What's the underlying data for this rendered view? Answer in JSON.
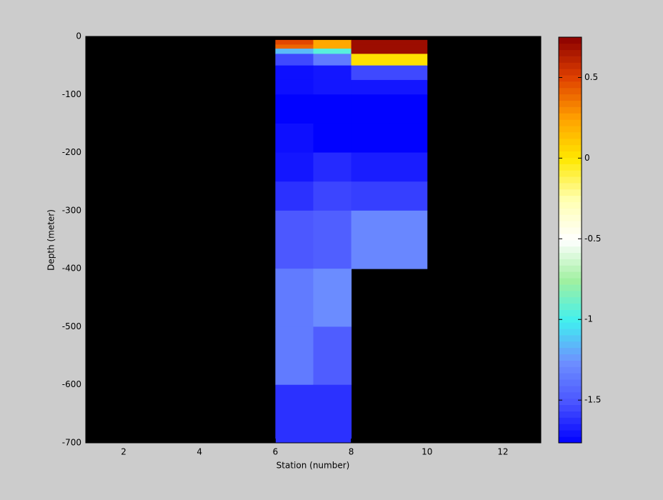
{
  "chart_data": {
    "type": "heatmap",
    "x_label": "Station (number)",
    "y_label": "Depth (meter)",
    "x_edges": [
      6,
      7,
      8,
      9,
      10
    ],
    "y_edges": [
      -6,
      -14,
      -21,
      -30,
      -50,
      -75,
      -100,
      -150,
      -200,
      -250,
      -300,
      -400,
      -500,
      -600,
      -700
    ],
    "values": [
      [
        0.48,
        0.22,
        0.7,
        0.7
      ],
      [
        0.4,
        0.22,
        0.7,
        0.7
      ],
      [
        -1.15,
        -0.95,
        0.7,
        0.7
      ],
      [
        -1.55,
        -1.35,
        0.02,
        0.02
      ],
      [
        -1.72,
        -1.7,
        -1.55,
        -1.55
      ],
      [
        -1.72,
        -1.7,
        -1.7,
        -1.7
      ],
      [
        -1.76,
        -1.76,
        -1.76,
        -1.76
      ],
      [
        -1.72,
        -1.76,
        -1.76,
        -1.76
      ],
      [
        -1.7,
        -1.64,
        -1.68,
        -1.68
      ],
      [
        -1.62,
        -1.56,
        -1.58,
        -1.58
      ],
      [
        -1.5,
        -1.47,
        -1.3,
        -1.3
      ],
      [
        -1.35,
        -1.28,
        null,
        null
      ],
      [
        -1.35,
        -1.48,
        null,
        null
      ],
      [
        -1.62,
        -1.62,
        null,
        null
      ]
    ],
    "xlim": [
      1,
      13
    ],
    "ylim": [
      -700,
      0
    ],
    "xticks": [
      2,
      4,
      6,
      8,
      10,
      12
    ],
    "yticks": [
      0,
      -100,
      -200,
      -300,
      -400,
      -500,
      -600,
      -700
    ],
    "clim": [
      -1.765,
      0.75
    ],
    "cticks": [
      0.5,
      0,
      -0.5,
      -1,
      -1.5
    ],
    "colormap": [
      "#0000ff",
      "#4a55ff",
      "#6e90ff",
      "#40f0f0",
      "#a0f0a0",
      "#ffffff",
      "#ffffb0",
      "#ffe800",
      "#ffa000",
      "#e04000",
      "#8b0000"
    ],
    "background": "#000000"
  }
}
